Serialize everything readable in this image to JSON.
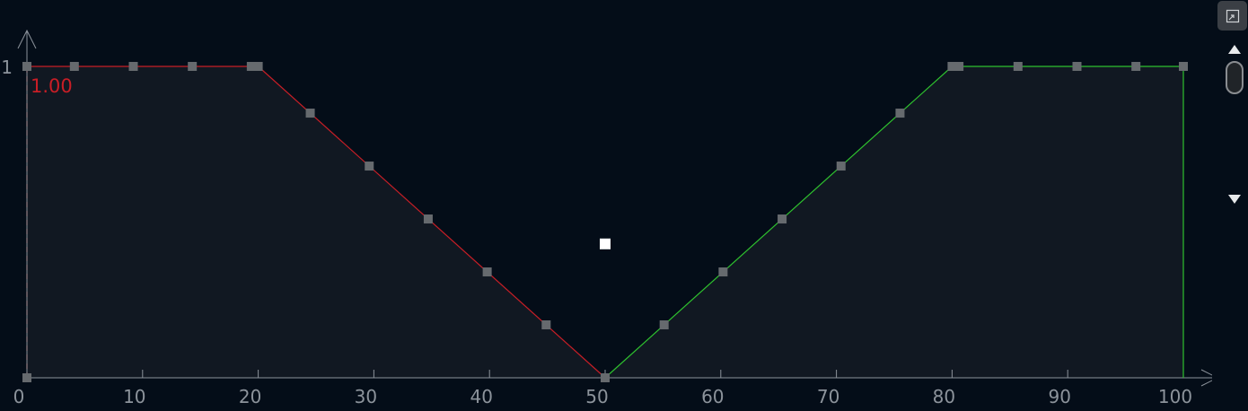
{
  "chart_data": {
    "type": "line",
    "x_ticks": [
      0,
      10,
      20,
      30,
      40,
      50,
      60,
      70,
      80,
      90,
      100
    ],
    "y_tick_labels": [
      "1"
    ],
    "xlim": [
      0,
      100
    ],
    "ylim": [
      0,
      1
    ],
    "grid": false,
    "series": [
      {
        "color": "#c81e26",
        "points": [
          [
            0,
            1
          ],
          [
            20,
            1
          ],
          [
            50,
            0
          ]
        ],
        "markers": [
          [
            0,
            1
          ],
          [
            4.1,
            1
          ],
          [
            9.2,
            1
          ],
          [
            14.3,
            1
          ],
          [
            19.4,
            1
          ],
          [
            20.0,
            1
          ],
          [
            24.5,
            0.85
          ],
          [
            29.6,
            0.68
          ],
          [
            34.7,
            0.51
          ],
          [
            39.8,
            0.34
          ],
          [
            44.9,
            0.17
          ],
          [
            50,
            0
          ]
        ]
      },
      {
        "color": "#2ec02e",
        "points": [
          [
            50,
            0
          ],
          [
            80,
            1
          ],
          [
            100,
            1
          ],
          [
            100,
            0
          ]
        ],
        "markers": [
          [
            55.1,
            0.17
          ],
          [
            60.2,
            0.34
          ],
          [
            65.3,
            0.51
          ],
          [
            70.4,
            0.68
          ],
          [
            75.5,
            0.85
          ],
          [
            80,
            1
          ],
          [
            80.6,
            1
          ],
          [
            85.7,
            1
          ],
          [
            90.8,
            1
          ],
          [
            95.9,
            1
          ],
          [
            100,
            1
          ]
        ]
      }
    ],
    "extra_markers": [
      [
        0,
        0
      ]
    ],
    "selected_point": [
      50,
      0.43
    ],
    "annotation": "1.00",
    "colors": {
      "background": "#040d18",
      "fill": "#111822",
      "axis": "#8c939b",
      "marker": "#666a6e",
      "selected": "#ffffff",
      "dashed_edge": "#c81e26"
    }
  },
  "side_panel": {
    "expand_icon": "expand-icon",
    "up_icon": "triangle-up-icon",
    "down_icon": "triangle-down-icon"
  }
}
